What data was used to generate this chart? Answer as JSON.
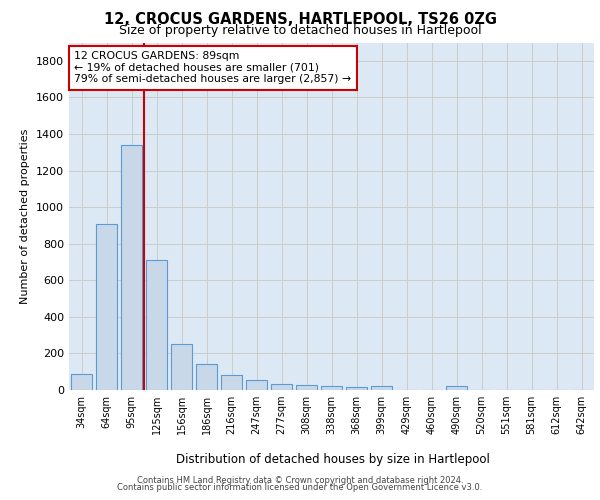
{
  "title1": "12, CROCUS GARDENS, HARTLEPOOL, TS26 0ZG",
  "title2": "Size of property relative to detached houses in Hartlepool",
  "xlabel": "Distribution of detached houses by size in Hartlepool",
  "ylabel": "Number of detached properties",
  "categories": [
    "34sqm",
    "64sqm",
    "95sqm",
    "125sqm",
    "156sqm",
    "186sqm",
    "216sqm",
    "247sqm",
    "277sqm",
    "308sqm",
    "338sqm",
    "368sqm",
    "399sqm",
    "429sqm",
    "460sqm",
    "490sqm",
    "520sqm",
    "551sqm",
    "581sqm",
    "612sqm",
    "642sqm"
  ],
  "values": [
    85,
    905,
    1340,
    710,
    250,
    140,
    82,
    55,
    32,
    25,
    20,
    15,
    20,
    0,
    0,
    20,
    0,
    0,
    0,
    0,
    0
  ],
  "bar_color": "#c8d8e8",
  "bar_edge_color": "#5b9bd5",
  "vline_x": 2,
  "vline_color": "#cc0000",
  "annotation_text": "12 CROCUS GARDENS: 89sqm\n← 19% of detached houses are smaller (701)\n79% of semi-detached houses are larger (2,857) →",
  "annotation_box_color": "#ffffff",
  "annotation_box_edge": "#cc0000",
  "ylim": [
    0,
    1900
  ],
  "yticks": [
    0,
    200,
    400,
    600,
    800,
    1000,
    1200,
    1400,
    1600,
    1800
  ],
  "footer1": "Contains HM Land Registry data © Crown copyright and database right 2024.",
  "footer2": "Contains public sector information licensed under the Open Government Licence v3.0.",
  "grid_color": "#cccccc",
  "bg_color": "#dde8f5"
}
